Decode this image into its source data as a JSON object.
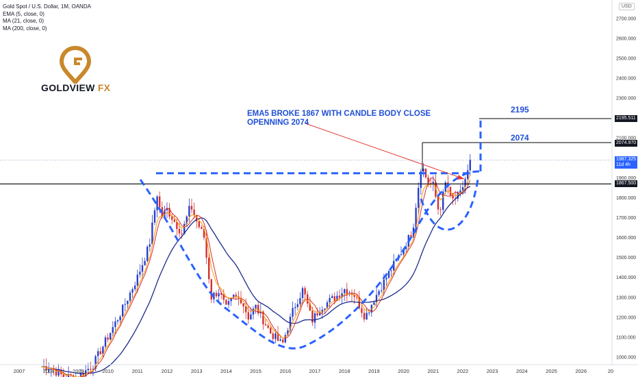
{
  "header": {
    "symbol_line": "Gold Spot / U.S. Dollar, 1M, OANDA",
    "indicators": [
      "EMA (5, close, 0)",
      "MA (21, close, 0)",
      "MA (200, close, 0)"
    ]
  },
  "logo": {
    "word": "GOLDVIEW",
    "suffix": "FX",
    "mark_color": "#c9882c"
  },
  "currency_button": "USD",
  "annotation": {
    "line1": "EMA5 BROKE 1867 WITH CANDLE BODY CLOSE",
    "line2": "OPENNING 2074"
  },
  "levels": {
    "upper_label": "2195",
    "mid_label": "2074"
  },
  "price_tags": {
    "tag_2195": "2195.511",
    "tag_2074": "2074.970",
    "last_price": "1987.325",
    "countdown": "11d 4h",
    "tag_1867": "1867.500"
  },
  "colors": {
    "up": "#2a3fc8",
    "down": "#d32f2f",
    "ema": "#ff9800",
    "ma21": "#d32f2f",
    "ma200": "#1a2a8c",
    "dashed": "#2962ff"
  },
  "chart_data": {
    "type": "candlestick",
    "title": "Gold Spot / U.S. Dollar, 1M, OANDA",
    "x_ticks": [
      "2007",
      "2008",
      "2009",
      "2010",
      "2011",
      "2012",
      "2013",
      "2014",
      "2015",
      "2016",
      "2017",
      "2018",
      "2019",
      "2020",
      "2021",
      "2022",
      "2023",
      "2024",
      "2025",
      "2026",
      "20"
    ],
    "y_ticks": [
      1000,
      1100,
      1200,
      1300,
      1400,
      1500,
      1600,
      1700,
      1800,
      1900,
      2000,
      2100,
      2200,
      2300,
      2400,
      2500,
      2600,
      2700
    ],
    "y_tick_labels": [
      "1000.000",
      "1100.000",
      "1200.000",
      "1300.000",
      "1400.000",
      "1500.000",
      "1600.000",
      "1700.000",
      "1800.000",
      "1900.000",
      "2000.000",
      "2100.000",
      "2200.000",
      "2300.000",
      "2400.000",
      "2500.000",
      "2600.000",
      "2700.000"
    ],
    "ylim": [
      960,
      2790
    ],
    "xlim": [
      2006.6,
      2027.0
    ],
    "anchors": [
      [
        2008.0,
        950
      ],
      [
        2008.5,
        900
      ],
      [
        2009.0,
        900
      ],
      [
        2009.5,
        960
      ],
      [
        2010.0,
        1100
      ],
      [
        2010.5,
        1240
      ],
      [
        2011.0,
        1400
      ],
      [
        2011.4,
        1560
      ],
      [
        2011.67,
        1820
      ],
      [
        2011.8,
        1700
      ],
      [
        2012.0,
        1740
      ],
      [
        2012.5,
        1620
      ],
      [
        2012.8,
        1760
      ],
      [
        2013.0,
        1680
      ],
      [
        2013.25,
        1600
      ],
      [
        2013.5,
        1300
      ],
      [
        2013.75,
        1330
      ],
      [
        2014.0,
        1240
      ],
      [
        2014.25,
        1300
      ],
      [
        2014.5,
        1290
      ],
      [
        2014.75,
        1200
      ],
      [
        2015.0,
        1250
      ],
      [
        2015.5,
        1120
      ],
      [
        2015.9,
        1060
      ],
      [
        2016.0,
        1110
      ],
      [
        2016.3,
        1250
      ],
      [
        2016.6,
        1340
      ],
      [
        2016.9,
        1180
      ],
      [
        2017.2,
        1250
      ],
      [
        2017.7,
        1300
      ],
      [
        2018.0,
        1340
      ],
      [
        2018.3,
        1320
      ],
      [
        2018.7,
        1200
      ],
      [
        2019.0,
        1290
      ],
      [
        2019.5,
        1420
      ],
      [
        2019.9,
        1520
      ],
      [
        2020.3,
        1630
      ],
      [
        2020.6,
        1970
      ],
      [
        2020.8,
        1880
      ],
      [
        2021.0,
        1860
      ],
      [
        2021.2,
        1720
      ],
      [
        2021.45,
        1890
      ],
      [
        2021.6,
        1780
      ],
      [
        2021.9,
        1810
      ],
      [
        2022.1,
        1900
      ],
      [
        2022.2,
        1940
      ],
      [
        2022.3,
        1987
      ]
    ],
    "levels": [
      {
        "label": "2195",
        "value": 2195.511,
        "style": "solid"
      },
      {
        "label": "2074",
        "value": 2074.97,
        "style": "solid"
      },
      {
        "label": "1867",
        "value": 1867.5,
        "style": "solid"
      },
      {
        "value": 1921,
        "style": "dashed"
      }
    ],
    "series": [
      {
        "name": "EMA (5, close, 0)",
        "type": "line"
      },
      {
        "name": "MA (21, close, 0)",
        "type": "line"
      },
      {
        "name": "MA (200, close, 0)",
        "type": "line"
      }
    ],
    "last_price": 1987.325,
    "grid": false
  }
}
